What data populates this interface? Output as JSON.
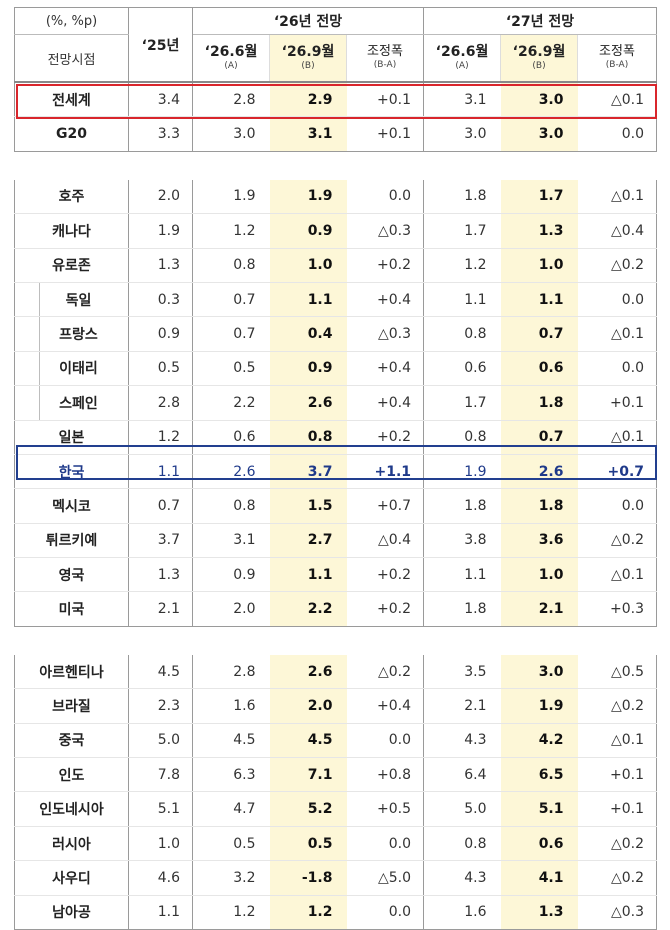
{
  "header": {
    "unit": "(%, %p)",
    "viewpoint": "전망시점",
    "y25": "‘25년",
    "grp26": "‘26년 전망",
    "grp27": "‘27년 전망",
    "sub": [
      {
        "main": "‘26.6월",
        "small": "(A)"
      },
      {
        "main": "‘26.9월",
        "small": "(B)"
      },
      {
        "main": "조정폭",
        "small": "(B-A)"
      },
      {
        "main": "‘26.6월",
        "small": "(A)"
      },
      {
        "main": "‘26.9월",
        "small": "(B)"
      },
      {
        "main": "조정폭",
        "small": "(B-A)"
      }
    ]
  },
  "rows": [
    {
      "name": "전세계",
      "v25": "3.4",
      "a26": "2.8",
      "b26": "2.9",
      "d26": "+0.1",
      "a27": "3.1",
      "b27": "3.0",
      "d27": "△0.1"
    },
    {
      "name": "G20",
      "v25": "3.3",
      "a26": "3.0",
      "b26": "3.1",
      "d26": "+0.1",
      "a27": "3.0",
      "b27": "3.0",
      "d27": "0.0"
    },
    {
      "name": "호주",
      "v25": "2.0",
      "a26": "1.9",
      "b26": "1.9",
      "d26": "0.0",
      "a27": "1.8",
      "b27": "1.7",
      "d27": "△0.1"
    },
    {
      "name": "캐나다",
      "v25": "1.9",
      "a26": "1.2",
      "b26": "0.9",
      "d26": "△0.3",
      "a27": "1.7",
      "b27": "1.3",
      "d27": "△0.4"
    },
    {
      "name": "유로존",
      "v25": "1.3",
      "a26": "0.8",
      "b26": "1.0",
      "d26": "+0.2",
      "a27": "1.2",
      "b27": "1.0",
      "d27": "△0.2"
    },
    {
      "name": "독일",
      "v25": "0.3",
      "a26": "0.7",
      "b26": "1.1",
      "d26": "+0.4",
      "a27": "1.1",
      "b27": "1.1",
      "d27": "0.0"
    },
    {
      "name": "프랑스",
      "v25": "0.9",
      "a26": "0.7",
      "b26": "0.4",
      "d26": "△0.3",
      "a27": "0.8",
      "b27": "0.7",
      "d27": "△0.1"
    },
    {
      "name": "이태리",
      "v25": "0.5",
      "a26": "0.5",
      "b26": "0.9",
      "d26": "+0.4",
      "a27": "0.6",
      "b27": "0.6",
      "d27": "0.0"
    },
    {
      "name": "스페인",
      "v25": "2.8",
      "a26": "2.2",
      "b26": "2.6",
      "d26": "+0.4",
      "a27": "1.7",
      "b27": "1.8",
      "d27": "+0.1"
    },
    {
      "name": "일본",
      "v25": "1.2",
      "a26": "0.6",
      "b26": "0.8",
      "d26": "+0.2",
      "a27": "0.8",
      "b27": "0.7",
      "d27": "△0.1"
    },
    {
      "name": "한국",
      "v25": "1.1",
      "a26": "2.6",
      "b26": "3.7",
      "d26": "+1.1",
      "a27": "1.9",
      "b27": "2.6",
      "d27": "+0.7"
    },
    {
      "name": "멕시코",
      "v25": "0.7",
      "a26": "0.8",
      "b26": "1.5",
      "d26": "+0.7",
      "a27": "1.8",
      "b27": "1.8",
      "d27": "0.0"
    },
    {
      "name": "튀르키예",
      "v25": "3.7",
      "a26": "3.1",
      "b26": "2.7",
      "d26": "△0.4",
      "a27": "3.8",
      "b27": "3.6",
      "d27": "△0.2"
    },
    {
      "name": "영국",
      "v25": "1.3",
      "a26": "0.9",
      "b26": "1.1",
      "d26": "+0.2",
      "a27": "1.1",
      "b27": "1.0",
      "d27": "△0.1"
    },
    {
      "name": "미국",
      "v25": "2.1",
      "a26": "2.0",
      "b26": "2.2",
      "d26": "+0.2",
      "a27": "1.8",
      "b27": "2.1",
      "d27": "+0.3"
    },
    {
      "name": "아르헨티나",
      "v25": "4.5",
      "a26": "2.8",
      "b26": "2.6",
      "d26": "△0.2",
      "a27": "3.5",
      "b27": "3.0",
      "d27": "△0.5"
    },
    {
      "name": "브라질",
      "v25": "2.3",
      "a26": "1.6",
      "b26": "2.0",
      "d26": "+0.4",
      "a27": "2.1",
      "b27": "1.9",
      "d27": "△0.2"
    },
    {
      "name": "중국",
      "v25": "5.0",
      "a26": "4.5",
      "b26": "4.5",
      "d26": "0.0",
      "a27": "4.3",
      "b27": "4.2",
      "d27": "△0.1"
    },
    {
      "name": "인도",
      "v25": "7.8",
      "a26": "6.3",
      "b26": "7.1",
      "d26": "+0.8",
      "a27": "6.4",
      "b27": "6.5",
      "d27": "+0.1"
    },
    {
      "name": "인도네시아",
      "v25": "5.1",
      "a26": "4.7",
      "b26": "5.2",
      "d26": "+0.5",
      "a27": "5.0",
      "b27": "5.1",
      "d27": "+0.1"
    },
    {
      "name": "러시아",
      "v25": "1.0",
      "a26": "0.5",
      "b26": "0.5",
      "d26": "0.0",
      "a27": "0.8",
      "b27": "0.6",
      "d27": "△0.2"
    },
    {
      "name": "사우디",
      "v25": "4.6",
      "a26": "3.2",
      "b26": "-1.8",
      "d26": "△5.0",
      "a27": "4.3",
      "b27": "4.1",
      "d27": "△0.2"
    },
    {
      "name": "남아공",
      "v25": "1.1",
      "a26": "1.2",
      "b26": "1.2",
      "d26": "0.0",
      "a27": "1.6",
      "b27": "1.3",
      "d27": "△0.3"
    }
  ],
  "colors": {
    "highlight_world": "#d9262c",
    "highlight_korea": "#223f8f",
    "b_column_fill": "#fdf7d7"
  }
}
